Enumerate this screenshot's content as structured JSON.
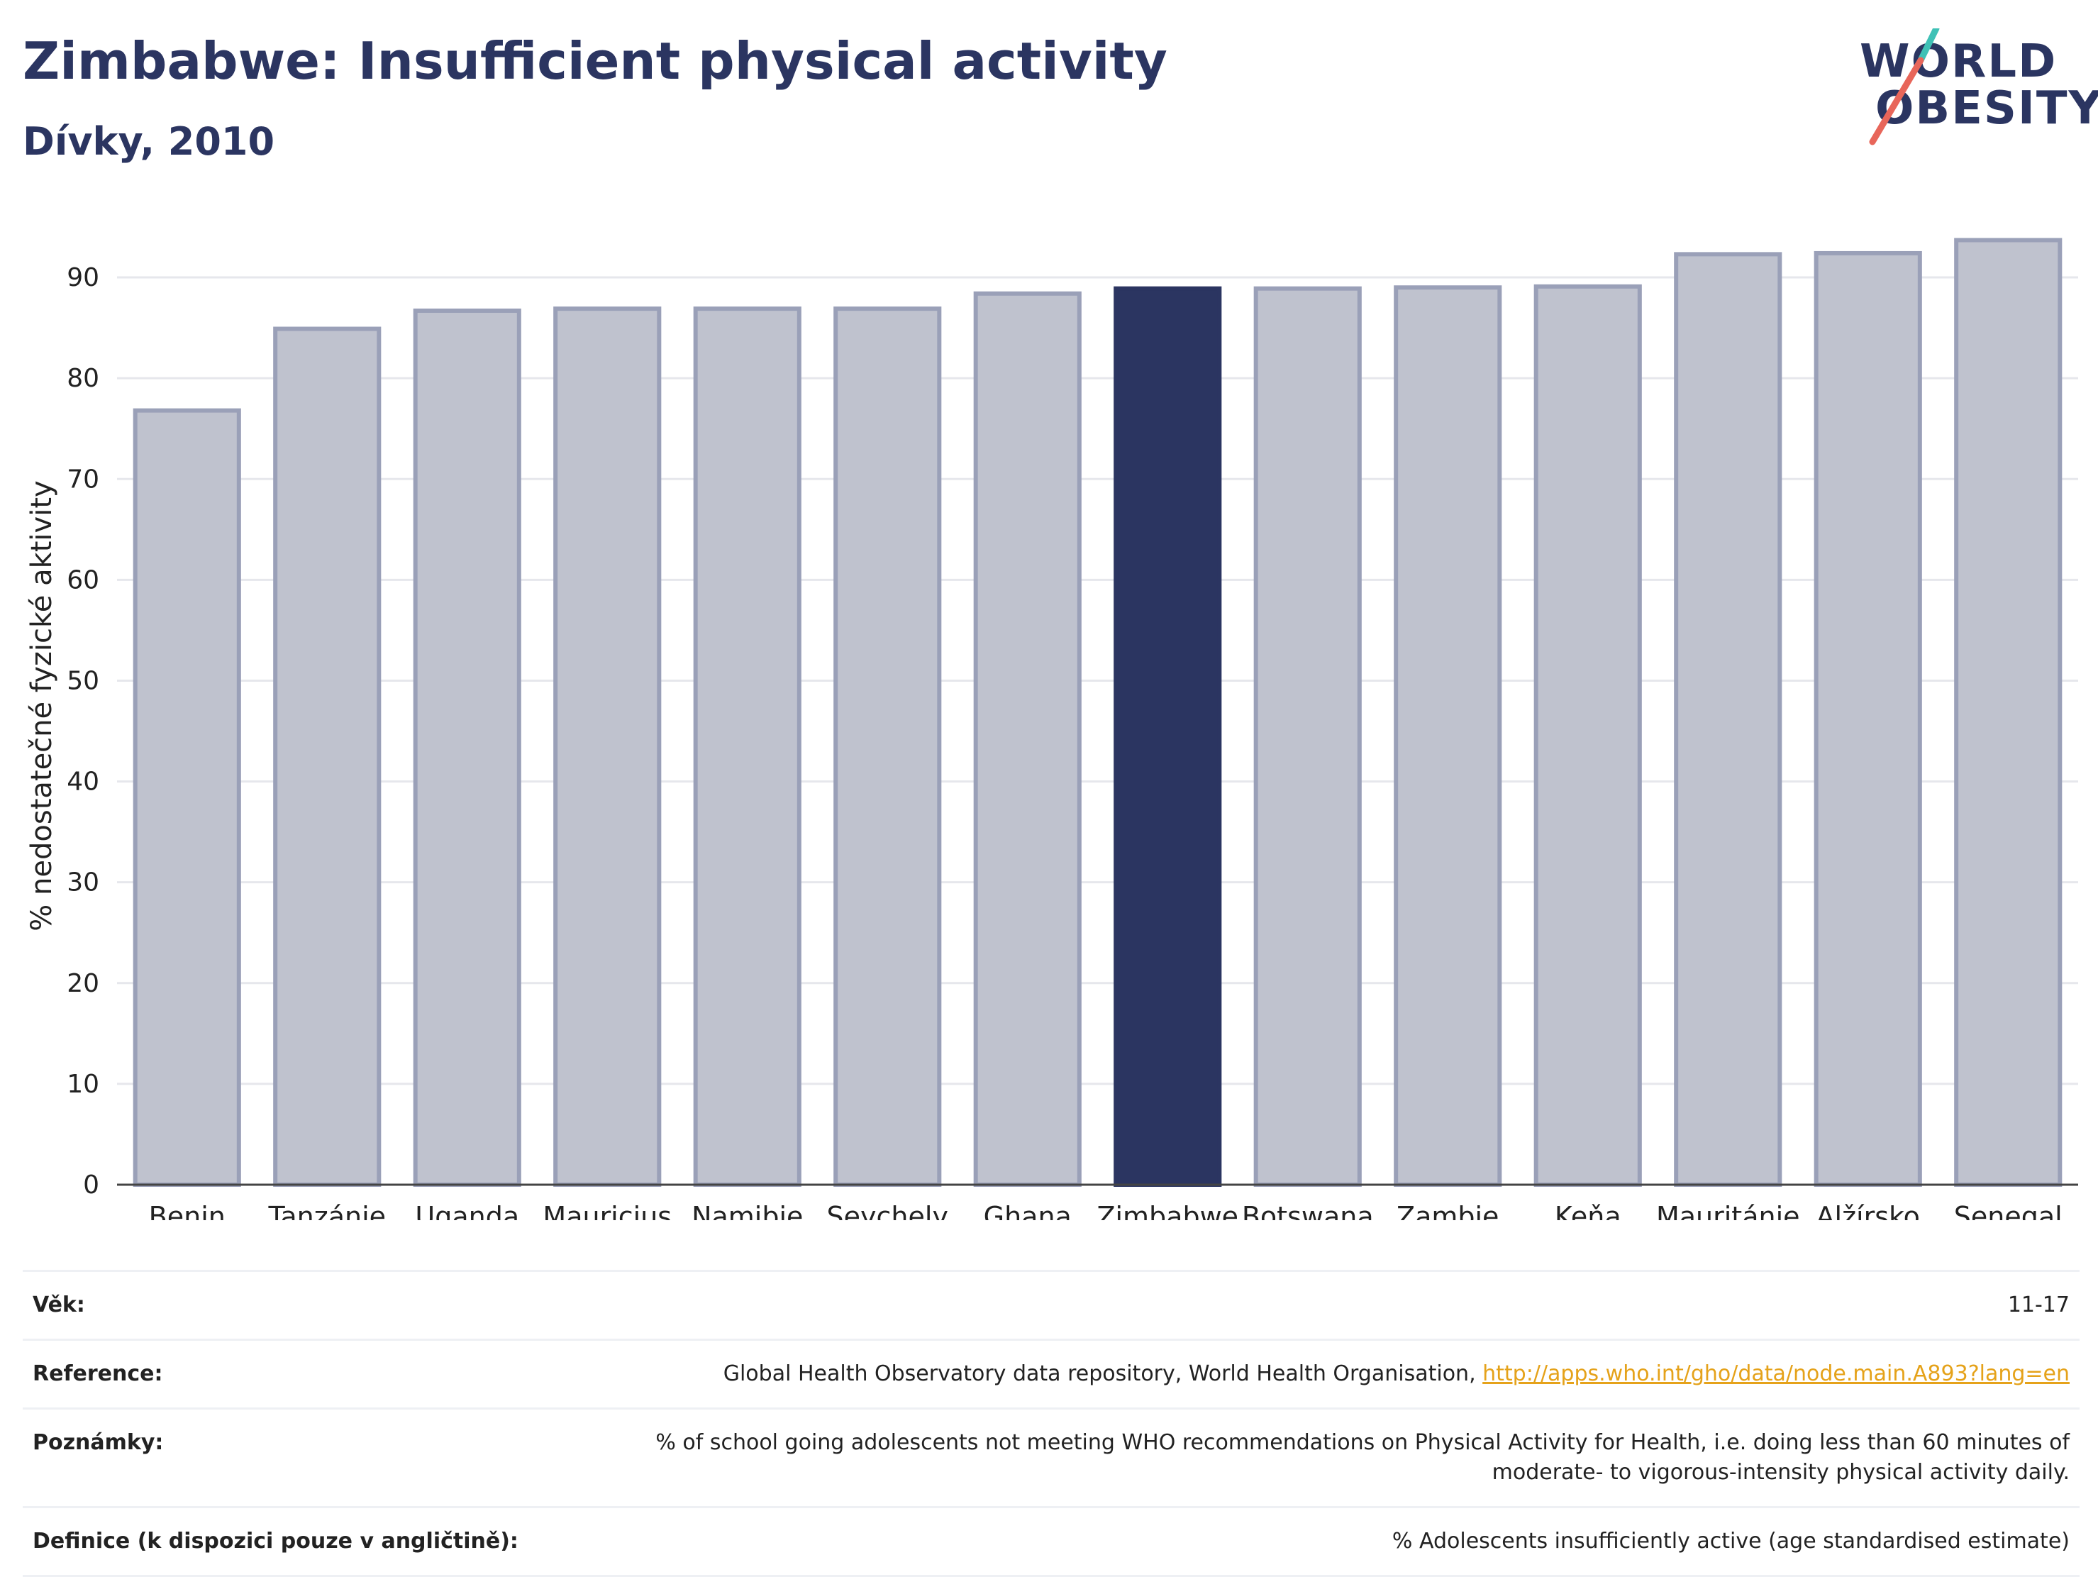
{
  "header": {
    "title": "Zimbabwe: Insufficient physical activity",
    "subtitle": "Dívky, 2010"
  },
  "logo": {
    "line1": "WORLD",
    "line2": "OBESITY"
  },
  "colors": {
    "highlight": "#2b3561",
    "bar": "#bfc2ce",
    "bar_edge": "#9aa0b8",
    "grid": "#e6e7ec"
  },
  "chart_data": {
    "type": "bar",
    "ylabel": "% nedostatečné fyzické aktivity",
    "ylim": [
      0,
      95
    ],
    "yticks": [
      0,
      10,
      20,
      30,
      40,
      50,
      60,
      70,
      80,
      90
    ],
    "grid": true,
    "highlight": "Zimbabwe",
    "categories": [
      "Benin",
      "Tanzánie",
      "Uganda",
      "Mauricius",
      "Namibie",
      "Seychely",
      "Ghana",
      "Zimbabwe",
      "Botswana",
      "Zambie",
      "Keňa",
      "Mauritánie",
      "Alžírsko",
      "Senegal"
    ],
    "values": [
      76.8,
      84.9,
      86.7,
      86.9,
      86.9,
      86.9,
      88.4,
      88.9,
      88.9,
      89.0,
      89.1,
      92.3,
      92.4,
      93.7
    ]
  },
  "info": {
    "age_label": "Věk:",
    "age_value": "11-17",
    "reference_label": "Reference:",
    "reference_text": "Global Health Observatory data repository, World Health Organisation, ",
    "reference_link": "http://apps.who.int/gho/data/node.main.A893?lang=en",
    "notes_label": "Poznámky:",
    "notes_line1": "% of school going adolescents not meeting WHO recommendations on Physical Activity for Health, i.e. doing less than 60 minutes of",
    "notes_line2": "moderate- to vigorous-intensity physical activity daily.",
    "definition_label": "Definice (k dispozici pouze v angličtině):",
    "definition_value": "% Adolescents insufficiently active (age standardised estimate)"
  }
}
